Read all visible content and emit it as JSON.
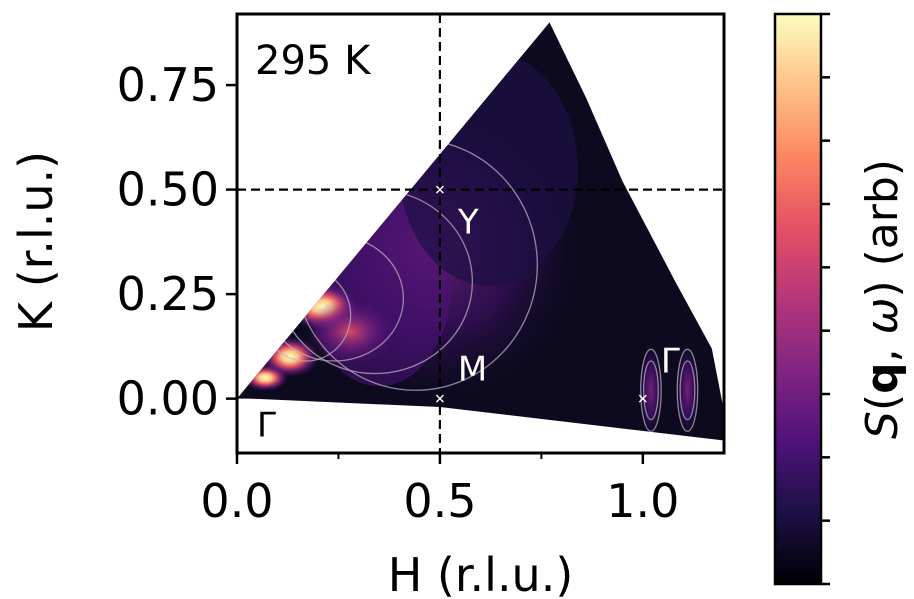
{
  "chart_data": {
    "type": "heatmap",
    "title": "",
    "annotation_temperature": "295 K",
    "xlabel": "H (r.l.u.)",
    "ylabel": "K (r.l.u.)",
    "colorbar_label": "S(q, ω) (arb)",
    "colorbar_label_parts": [
      "S",
      "(",
      "q",
      ", ",
      "ω",
      ") (arb)"
    ],
    "colormap": "magma",
    "xlim": [
      0.0,
      1.2
    ],
    "ylim": [
      -0.13,
      0.92
    ],
    "x_ticks": [
      0.0,
      0.5,
      1.0
    ],
    "x_tick_labels": [
      "0.0",
      "0.5",
      "1.0"
    ],
    "y_ticks": [
      0.0,
      0.25,
      0.5,
      0.75
    ],
    "y_tick_labels": [
      "0.00",
      "0.25",
      "0.50",
      "0.75"
    ],
    "x_minor_ticks": [
      0.25,
      0.75
    ],
    "grid": false,
    "dashed_lines": {
      "vertical_x": 0.5,
      "horizontal_y": 0.5
    },
    "coverage_polygon": [
      [
        0.0,
        0.0
      ],
      [
        0.77,
        0.9
      ],
      [
        0.86,
        0.72
      ],
      [
        0.95,
        0.52
      ],
      [
        1.08,
        0.28
      ],
      [
        1.17,
        0.12
      ],
      [
        1.2,
        -0.03
      ],
      [
        1.2,
        -0.1
      ],
      [
        0.5,
        -0.02
      ],
      [
        0.03,
        0.0
      ]
    ],
    "high_points": [
      {
        "label": "Γ",
        "h": 0.0,
        "k": 0.0
      },
      {
        "label": "M",
        "h": 0.5,
        "k": 0.0
      },
      {
        "label": "Y",
        "h": 0.5,
        "k": 0.5
      },
      {
        "label": "Γ",
        "h": 1.0,
        "k": 0.0
      }
    ],
    "intensity_features": [
      {
        "h": 0.21,
        "k": 0.22,
        "rh": 0.055,
        "rk": 0.035,
        "level": 1.0
      },
      {
        "h": 0.13,
        "k": 0.1,
        "rh": 0.045,
        "rk": 0.03,
        "level": 1.0
      },
      {
        "h": 0.07,
        "k": 0.05,
        "rh": 0.035,
        "rk": 0.02,
        "level": 0.85
      },
      {
        "h": 0.28,
        "k": 0.16,
        "rh": 0.07,
        "rk": 0.05,
        "level": 0.55
      },
      {
        "h": 1.02,
        "k": 0.02,
        "rh": 0.018,
        "rk": 0.07,
        "level": 0.4
      },
      {
        "h": 1.11,
        "k": 0.02,
        "rh": 0.018,
        "rk": 0.07,
        "level": 0.4
      }
    ],
    "colors": {
      "background": "#ffffff",
      "axis": "#000000",
      "marker": "#ffffff",
      "contour": "#b9aec0",
      "colormap_stops": [
        "#000004",
        "#1c1044",
        "#4f127b",
        "#812581",
        "#b5367a",
        "#e55064",
        "#fb8761",
        "#fec287",
        "#fcfdbf"
      ]
    }
  }
}
